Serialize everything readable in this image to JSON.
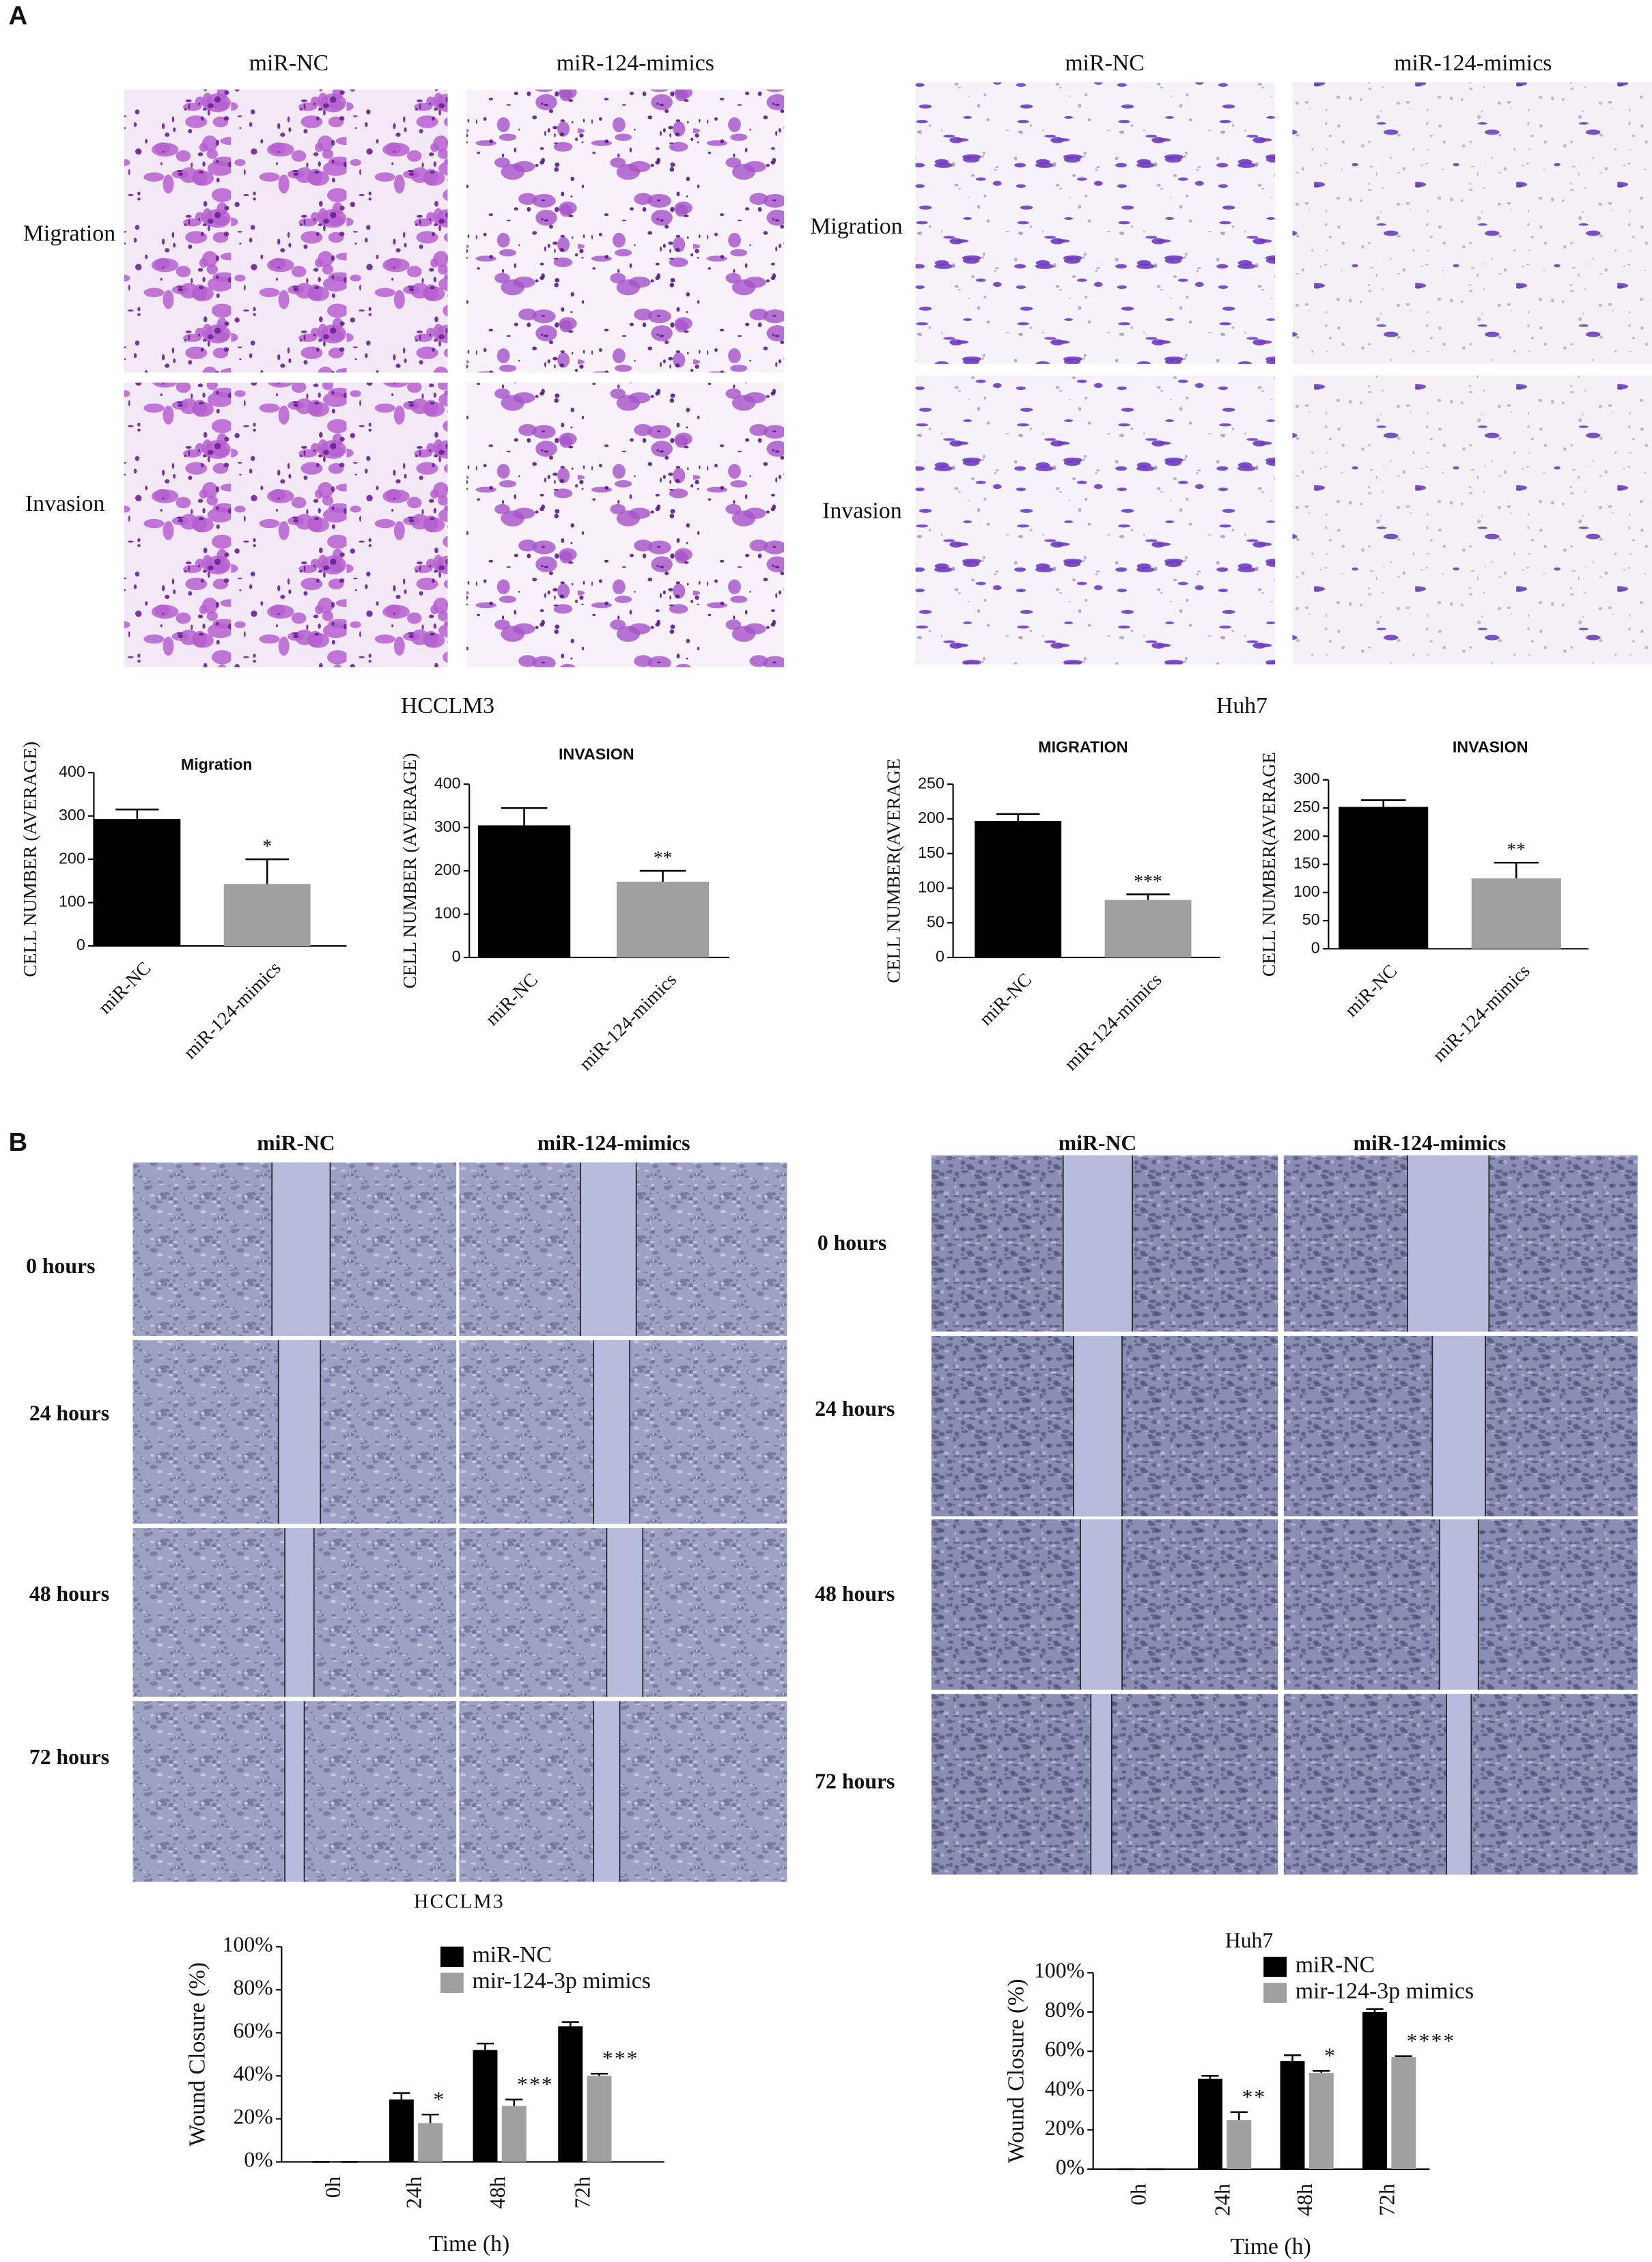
{
  "panel_a": {
    "label": "A",
    "cell_lines": [
      "HCCLM3",
      "Huh7"
    ],
    "image_columns": [
      "miR-NC",
      "miR-124-mimics",
      "miR-NC",
      "miR-124-mimics"
    ],
    "image_rows": [
      "Migration",
      "Invasion",
      "Migration",
      "Invasion"
    ]
  },
  "panel_b": {
    "label": "B",
    "cell_lines": [
      "HCCLM3",
      "Huh7"
    ],
    "image_columns": [
      "miR-NC",
      "miR-124-mimics",
      "miR-NC",
      "miR-124-mimics"
    ],
    "image_rows": [
      "0 hours",
      "24 hours",
      "48 hours",
      "72 hours",
      "0 hours",
      "24 hours",
      "48 hours",
      "72 hours"
    ]
  },
  "chart_data": [
    {
      "type": "bar",
      "title": "Migration",
      "ylabel": "CELL NUMBER (AVERAGE)",
      "categories": [
        "miR-NC",
        "miR-124-mimics"
      ],
      "values": [
        293,
        143
      ],
      "errors": [
        22,
        57
      ],
      "colors": [
        "#000000",
        "#a0a0a0"
      ],
      "ylim": [
        0,
        400
      ],
      "yticks": [
        0,
        100,
        200,
        300,
        400
      ],
      "annotations": [
        {
          "index": 1,
          "text": "*"
        }
      ]
    },
    {
      "type": "bar",
      "title": "INVASION",
      "ylabel": "CELL NUMBER (AVERAGE)",
      "categories": [
        "miR-NC",
        "miR-124-mimics"
      ],
      "values": [
        305,
        175
      ],
      "errors": [
        40,
        25
      ],
      "colors": [
        "#000000",
        "#a0a0a0"
      ],
      "ylim": [
        0,
        400
      ],
      "yticks": [
        0,
        100,
        200,
        300,
        400
      ],
      "annotations": [
        {
          "index": 1,
          "text": "**"
        }
      ]
    },
    {
      "type": "bar",
      "title": "MIGRATION",
      "ylabel": "CELL NUMBER(AVERAGE",
      "categories": [
        "miR-NC",
        "miR-124-mimics"
      ],
      "values": [
        197,
        83
      ],
      "errors": [
        10,
        8
      ],
      "colors": [
        "#000000",
        "#a0a0a0"
      ],
      "ylim": [
        0,
        250
      ],
      "yticks": [
        0,
        50,
        100,
        150,
        200,
        250
      ],
      "annotations": [
        {
          "index": 1,
          "text": "***"
        }
      ]
    },
    {
      "type": "bar",
      "title": "INVASION",
      "ylabel": "CELL NUMBER(AVERAGE",
      "categories": [
        "miR-NC",
        "miR-124-mimics"
      ],
      "values": [
        252,
        125
      ],
      "errors": [
        12,
        28
      ],
      "colors": [
        "#000000",
        "#a0a0a0"
      ],
      "ylim": [
        0,
        300
      ],
      "yticks": [
        0,
        50,
        100,
        150,
        200,
        250,
        300
      ],
      "annotations": [
        {
          "index": 1,
          "text": "**"
        }
      ]
    },
    {
      "type": "grouped_bar",
      "ylabel": "Wound Closure (%)",
      "xlabel": "Time (h)",
      "categories": [
        "0h",
        "24h",
        "48h",
        "72h"
      ],
      "series": [
        {
          "name": "miR-NC",
          "color": "#000000",
          "values": [
            0,
            29,
            52,
            63
          ],
          "errors": [
            0,
            3,
            3,
            2
          ]
        },
        {
          "name": "mir-124-3p mimics",
          "color": "#a0a0a0",
          "values": [
            0,
            18,
            26,
            40
          ],
          "errors": [
            0,
            4,
            3,
            1
          ]
        }
      ],
      "ylim": [
        0,
        100
      ],
      "yticks": [
        {
          "value": 0,
          "label": "0%"
        },
        {
          "value": 20,
          "label": "20%"
        },
        {
          "value": 40,
          "label": "40%"
        },
        {
          "value": 60,
          "label": "60%"
        },
        {
          "value": 80,
          "label": "80%"
        },
        {
          "value": 100,
          "label": "100%"
        }
      ],
      "annotations": [
        {
          "series": 1,
          "index": 1,
          "text": "*"
        },
        {
          "series": 1,
          "index": 2,
          "text": "***"
        },
        {
          "series": 1,
          "index": 3,
          "text": "***"
        }
      ]
    },
    {
      "type": "grouped_bar",
      "ylabel": "Wound Closure (%)",
      "xlabel": "Time (h)",
      "categories": [
        "0h",
        "24h",
        "48h",
        "72h"
      ],
      "series": [
        {
          "name": "miR-NC",
          "color": "#000000",
          "values": [
            0,
            46,
            55,
            80
          ],
          "errors": [
            0,
            1.5,
            3,
            1.5
          ]
        },
        {
          "name": "mir-124-3p mimics",
          "color": "#a0a0a0",
          "values": [
            0,
            25,
            49,
            57
          ],
          "errors": [
            0,
            4,
            1,
            0.5
          ]
        }
      ],
      "ylim": [
        0,
        100
      ],
      "yticks": [
        {
          "value": 0,
          "label": "0%"
        },
        {
          "value": 20,
          "label": "20%"
        },
        {
          "value": 40,
          "label": "40%"
        },
        {
          "value": 60,
          "label": "60%"
        },
        {
          "value": 80,
          "label": "80%"
        },
        {
          "value": 100,
          "label": "100%"
        }
      ],
      "annotations": [
        {
          "series": 1,
          "index": 1,
          "text": "**"
        },
        {
          "series": 1,
          "index": 2,
          "text": "*"
        },
        {
          "series": 1,
          "index": 3,
          "text": "****"
        }
      ]
    }
  ]
}
